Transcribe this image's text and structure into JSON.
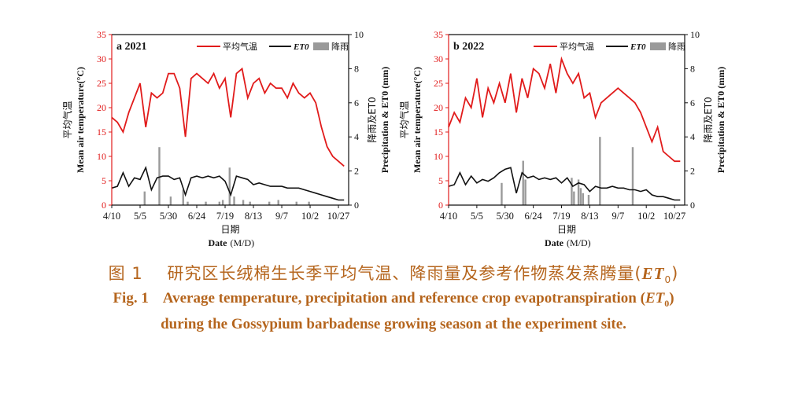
{
  "chart_data": [
    {
      "type": "line",
      "panel_label": "a 2021",
      "x_range": [
        "2021-04-10",
        "2021-11-05"
      ],
      "x_ticks": [
        "4/10",
        "5/5",
        "5/30",
        "6/24",
        "7/19",
        "8/13",
        "9/7",
        "10/2",
        "10/27"
      ],
      "xlabel_cn": "日期",
      "xlabel_en": "Date",
      "xlabel_unit": "(M/D)",
      "ylabel_left_cn": "平均气温",
      "ylabel_left_en": "Mean air temperature(°C)",
      "ylabel_right_cn": "降雨及ET0",
      "ylabel_right_en": "Precipitation & ET0 (mm)",
      "ylim_left": [
        0,
        35
      ],
      "ylim_right": [
        0,
        10
      ],
      "yticks_left": [
        "0",
        "5",
        "10",
        "15",
        "20",
        "25",
        "30",
        "35"
      ],
      "yticks_right": [
        "0",
        "2",
        "4",
        "6",
        "8",
        "10"
      ],
      "legend": {
        "placement": "top",
        "temp": "平均气温",
        "et0": "ET0",
        "rain": "降雨"
      },
      "series": [
        {
          "name": "平均气温",
          "axis": "left",
          "color": "#e11b1b",
          "x": [
            "4/10",
            "4/15",
            "4/20",
            "4/25",
            "4/30",
            "5/5",
            "5/10",
            "5/15",
            "5/20",
            "5/25",
            "5/30",
            "6/4",
            "6/9",
            "6/14",
            "6/19",
            "6/24",
            "6/29",
            "7/4",
            "7/9",
            "7/14",
            "7/19",
            "7/24",
            "7/29",
            "8/3",
            "8/8",
            "8/13",
            "8/18",
            "8/23",
            "8/28",
            "9/2",
            "9/7",
            "9/12",
            "9/17",
            "9/22",
            "9/27",
            "10/2",
            "10/7",
            "10/12",
            "10/17",
            "10/22",
            "10/27",
            "11/1"
          ],
          "y": [
            18,
            17,
            15,
            19,
            22,
            25,
            16,
            23,
            22,
            23,
            27,
            27,
            24,
            14,
            26,
            27,
            26,
            25,
            27,
            24,
            26,
            18,
            27,
            28,
            22,
            25,
            26,
            23,
            25,
            24,
            24,
            22,
            25,
            23,
            22,
            23,
            21,
            16,
            12,
            10,
            9,
            8
          ]
        },
        {
          "name": "ET0",
          "axis": "right",
          "color": "#111111",
          "x": [
            "4/10",
            "4/15",
            "4/20",
            "4/25",
            "4/30",
            "5/5",
            "5/10",
            "5/15",
            "5/20",
            "5/25",
            "5/30",
            "6/4",
            "6/9",
            "6/14",
            "6/19",
            "6/24",
            "6/29",
            "7/4",
            "7/9",
            "7/14",
            "7/19",
            "7/24",
            "7/29",
            "8/3",
            "8/8",
            "8/13",
            "8/18",
            "8/23",
            "8/28",
            "9/2",
            "9/7",
            "9/12",
            "9/17",
            "9/22",
            "9/27",
            "10/2",
            "10/7",
            "10/12",
            "10/17",
            "10/22",
            "10/27",
            "11/1"
          ],
          "y": [
            1.0,
            1.1,
            1.9,
            1.1,
            1.6,
            1.5,
            2.2,
            0.9,
            1.6,
            1.7,
            1.7,
            1.5,
            1.6,
            0.6,
            1.6,
            1.7,
            1.6,
            1.7,
            1.6,
            1.7,
            1.4,
            0.6,
            1.7,
            1.6,
            1.5,
            1.2,
            1.3,
            1.2,
            1.1,
            1.1,
            1.1,
            1.0,
            1.0,
            1.0,
            0.9,
            0.8,
            0.7,
            0.6,
            0.5,
            0.4,
            0.3,
            0.3
          ]
        },
        {
          "name": "降雨",
          "axis": "right",
          "color": "#9a9a9a",
          "kind": "bar",
          "x": [
            "5/9",
            "5/22",
            "6/1",
            "6/12",
            "6/16",
            "7/2",
            "7/14",
            "7/17",
            "7/23",
            "7/27",
            "8/4",
            "8/10",
            "8/27",
            "9/4",
            "9/20",
            "10/1"
          ],
          "y": [
            0.8,
            3.4,
            0.5,
            0.9,
            0.2,
            0.2,
            0.2,
            0.3,
            2.2,
            0.5,
            0.3,
            0.2,
            0.2,
            0.3,
            0.2,
            0.2
          ]
        }
      ]
    },
    {
      "type": "line",
      "panel_label": "b 2022",
      "x_range": [
        "2022-04-10",
        "2022-11-05"
      ],
      "x_ticks": [
        "4/10",
        "5/5",
        "5/30",
        "6/24",
        "7/19",
        "8/13",
        "9/7",
        "10/2",
        "10/27"
      ],
      "xlabel_cn": "日期",
      "xlabel_en": "Date",
      "xlabel_unit": "(M/D)",
      "ylabel_left_cn": "平均气温",
      "ylabel_left_en": "Mean air temperature(°C)",
      "ylabel_right_cn": "降雨及ET0",
      "ylabel_right_en": "Precipitation & ET0 (mm)",
      "ylim_left": [
        0,
        35
      ],
      "ylim_right": [
        0,
        10
      ],
      "yticks_left": [
        "0",
        "5",
        "10",
        "15",
        "20",
        "25",
        "30",
        "35"
      ],
      "yticks_right": [
        "0",
        "2",
        "4",
        "6",
        "8",
        "10"
      ],
      "legend": {
        "placement": "top",
        "temp": "平均气温",
        "et0": "ET0",
        "rain": "降雨"
      },
      "series": [
        {
          "name": "平均气温",
          "axis": "left",
          "color": "#e11b1b",
          "x": [
            "4/10",
            "4/15",
            "4/20",
            "4/25",
            "4/30",
            "5/5",
            "5/10",
            "5/15",
            "5/20",
            "5/25",
            "5/30",
            "6/4",
            "6/9",
            "6/14",
            "6/19",
            "6/24",
            "6/29",
            "7/4",
            "7/9",
            "7/14",
            "7/19",
            "7/24",
            "7/29",
            "8/3",
            "8/8",
            "8/13",
            "8/18",
            "8/23",
            "8/28",
            "9/2",
            "9/7",
            "9/12",
            "9/17",
            "9/22",
            "9/27",
            "10/2",
            "10/7",
            "10/12",
            "10/17",
            "10/22",
            "10/27",
            "11/1"
          ],
          "y": [
            16,
            19,
            17,
            22,
            20,
            26,
            18,
            24,
            21,
            25,
            21,
            27,
            19,
            26,
            22,
            28,
            27,
            24,
            29,
            23,
            30,
            27,
            25,
            27,
            22,
            23,
            18,
            21,
            22,
            23,
            24,
            23,
            22,
            21,
            19,
            16,
            13,
            16,
            11,
            10,
            9,
            9
          ]
        },
        {
          "name": "ET0",
          "axis": "right",
          "color": "#111111",
          "x": [
            "4/10",
            "4/15",
            "4/20",
            "4/25",
            "4/30",
            "5/5",
            "5/10",
            "5/15",
            "5/20",
            "5/25",
            "5/30",
            "6/4",
            "6/9",
            "6/14",
            "6/19",
            "6/24",
            "6/29",
            "7/4",
            "7/9",
            "7/14",
            "7/19",
            "7/24",
            "7/29",
            "8/3",
            "8/8",
            "8/13",
            "8/18",
            "8/23",
            "8/28",
            "9/2",
            "9/7",
            "9/12",
            "9/17",
            "9/22",
            "9/27",
            "10/2",
            "10/7",
            "10/12",
            "10/17",
            "10/22",
            "10/27",
            "11/1"
          ],
          "y": [
            1.1,
            1.2,
            1.9,
            1.2,
            1.7,
            1.3,
            1.5,
            1.4,
            1.6,
            1.9,
            2.1,
            2.2,
            0.7,
            1.9,
            1.6,
            1.7,
            1.5,
            1.6,
            1.5,
            1.6,
            1.3,
            1.6,
            1.1,
            1.3,
            1.2,
            0.8,
            1.1,
            1.0,
            1.0,
            1.1,
            1.0,
            1.0,
            0.9,
            0.9,
            0.8,
            0.9,
            0.6,
            0.5,
            0.5,
            0.4,
            0.3,
            0.3
          ]
        },
        {
          "name": "降雨",
          "axis": "right",
          "color": "#9a9a9a",
          "kind": "bar",
          "x": [
            "5/27",
            "6/15",
            "6/17",
            "7/28",
            "7/30",
            "8/3",
            "8/5",
            "8/7",
            "8/12",
            "8/22",
            "9/20"
          ],
          "y": [
            1.3,
            2.6,
            1.5,
            1.6,
            0.8,
            1.5,
            1.0,
            0.7,
            0.6,
            4.0,
            3.4
          ]
        }
      ]
    }
  ],
  "captions": {
    "cn_prefix": "图 1",
    "cn_text": "研究区长绒棉生长季平均气温、降雨量及参考作物蒸发蒸腾量",
    "cn_paren_open": "(",
    "cn_sym": "ET",
    "cn_sub": "0",
    "cn_paren_close": ")",
    "en1_prefix": "Fig. 1",
    "en1_text": "Average temperature, precipitation and reference crop evapotranspiration (",
    "en1_sym": "ET",
    "en1_sub": "0",
    "en1_close": ")",
    "en2_text": "during the Gossypium barbadense growing season at the experiment site."
  }
}
